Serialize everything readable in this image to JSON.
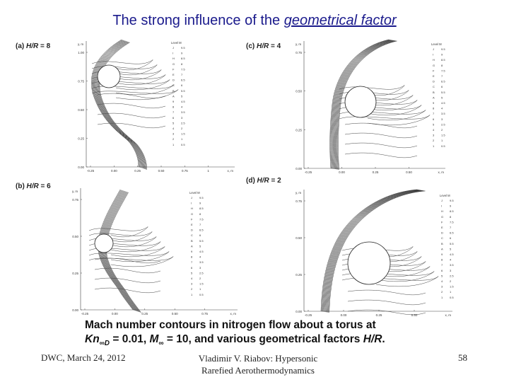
{
  "title": {
    "prefix": "The strong influence of the ",
    "emphasis": "geometrical factor"
  },
  "panels": [
    {
      "id": "a",
      "label_prefix": "(a) ",
      "label_var": "H/R",
      "label_suffix": " = 8",
      "y_axis": "y, m",
      "x_axis": "x, m",
      "y_ticks": [
        "1.00",
        "0.75",
        "0.50",
        "0.25",
        "0.00"
      ],
      "x_ticks": [
        "-0.25",
        "0.00",
        "0.25",
        "0.50",
        "0.75",
        "1"
      ],
      "legend_title": "Level  M",
      "legend": [
        [
          "J",
          "9.5"
        ],
        [
          "I",
          "9"
        ],
        [
          "H",
          "8.5"
        ],
        [
          "G",
          "8"
        ],
        [
          "F",
          "7.5"
        ],
        [
          "E",
          "7"
        ],
        [
          "D",
          "6.5"
        ],
        [
          "C",
          "6"
        ],
        [
          "B",
          "5.5"
        ],
        [
          "A",
          "5"
        ],
        [
          "9",
          "4.5"
        ],
        [
          "8",
          "4"
        ],
        [
          "7",
          "3.5"
        ],
        [
          "6",
          "3"
        ],
        [
          "5",
          "2.5"
        ],
        [
          "4",
          "2"
        ],
        [
          "3",
          "1.5"
        ],
        [
          "2",
          "1"
        ],
        [
          "1",
          "0.5"
        ]
      ]
    },
    {
      "id": "b",
      "label_prefix": "(b) ",
      "label_var": "H/R",
      "label_suffix": " = 6",
      "y_axis": "y, m",
      "x_axis": "x, m",
      "y_ticks": [
        "0.75",
        "0.50",
        "0.25",
        "0.00"
      ],
      "x_ticks": [
        "-0.25",
        "0.00",
        "0.25",
        "0.50",
        "0.75"
      ],
      "legend_title": "Level  M",
      "legend": [
        [
          "J",
          "9.5"
        ],
        [
          "I",
          "9"
        ],
        [
          "H",
          "8.5"
        ],
        [
          "G",
          "8"
        ],
        [
          "F",
          "7.5"
        ],
        [
          "E",
          "7"
        ],
        [
          "D",
          "6.5"
        ],
        [
          "C",
          "6"
        ],
        [
          "B",
          "5.5"
        ],
        [
          "A",
          "5"
        ],
        [
          "9",
          "4.5"
        ],
        [
          "8",
          "4"
        ],
        [
          "7",
          "3.5"
        ],
        [
          "6",
          "3"
        ],
        [
          "5",
          "2.5"
        ],
        [
          "4",
          "2"
        ],
        [
          "3",
          "1.5"
        ],
        [
          "2",
          "1"
        ],
        [
          "1",
          "0.5"
        ]
      ]
    },
    {
      "id": "c",
      "label_prefix": "(c) ",
      "label_var": "H/R",
      "label_suffix": " = 4",
      "y_axis": "y, m",
      "x_axis": "x, m",
      "y_ticks": [
        "0.75",
        "0.50",
        "0.25",
        "0.00"
      ],
      "x_ticks": [
        "-0.25",
        "0.00",
        "0.25",
        "0.50"
      ],
      "legend_title": "Level  M",
      "legend": [
        [
          "J",
          "9.5"
        ],
        [
          "I",
          "9"
        ],
        [
          "H",
          "8.5"
        ],
        [
          "G",
          "8"
        ],
        [
          "F",
          "7.5"
        ],
        [
          "E",
          "7"
        ],
        [
          "D",
          "6.5"
        ],
        [
          "C",
          "6"
        ],
        [
          "B",
          "5.5"
        ],
        [
          "A",
          "5"
        ],
        [
          "9",
          "4.5"
        ],
        [
          "8",
          "4"
        ],
        [
          "7",
          "3.5"
        ],
        [
          "6",
          "3"
        ],
        [
          "5",
          "2.5"
        ],
        [
          "4",
          "2"
        ],
        [
          "3",
          "1.5"
        ],
        [
          "2",
          "1"
        ],
        [
          "1",
          "0.5"
        ]
      ]
    },
    {
      "id": "d",
      "label_prefix": "(d) ",
      "label_var": "H/R",
      "label_suffix": " = 2",
      "y_axis": "y, m",
      "x_axis": "x, m",
      "y_ticks": [
        "0.75",
        "0.50",
        "0.25",
        "0.00"
      ],
      "x_ticks": [
        "-0.25",
        "0.00",
        "0.25",
        "0.50"
      ],
      "legend_title": "Level  M",
      "legend": [
        [
          "J",
          "9.5"
        ],
        [
          "I",
          "9"
        ],
        [
          "H",
          "8.5"
        ],
        [
          "G",
          "8"
        ],
        [
          "F",
          "7.5"
        ],
        [
          "E",
          "7"
        ],
        [
          "D",
          "6.5"
        ],
        [
          "C",
          "6"
        ],
        [
          "B",
          "5.5"
        ],
        [
          "A",
          "5"
        ],
        [
          "9",
          "4.5"
        ],
        [
          "8",
          "4"
        ],
        [
          "7",
          "3.5"
        ],
        [
          "6",
          "3"
        ],
        [
          "5",
          "2.5"
        ],
        [
          "4",
          "2"
        ],
        [
          "3",
          "1.5"
        ],
        [
          "2",
          "1"
        ],
        [
          "1",
          "0.5"
        ]
      ]
    }
  ],
  "caption": {
    "line1": "Mach number contours in nitrogen flow about a torus at",
    "kn": "Kn",
    "kn_sub": "∞D",
    "kn_val": " = 0.01, ",
    "mach": "M",
    "mach_sub": "∞",
    "mach_val": " = 10, and various geometrical factors ",
    "hr": "H/R",
    "end": "."
  },
  "footer": {
    "left": "DWC, March 24, 2012",
    "center_line1": "Vladimir V. Riabov: Hypersonic",
    "center_line2": "Rarefied Aerothermodynamics",
    "page": "58"
  }
}
